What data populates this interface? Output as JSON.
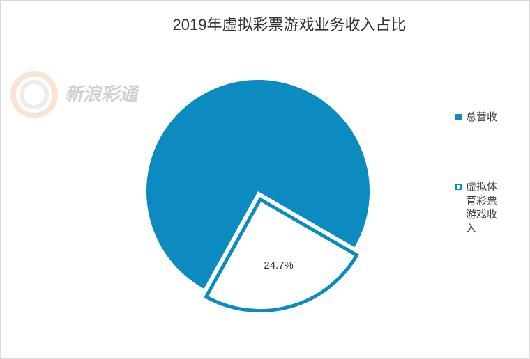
{
  "chart_data": {
    "type": "pie",
    "title": "2019年虚拟彩票游戏业务收入占比",
    "watermark": "新浪彩通",
    "categories": [
      "总营收",
      "虚拟体育彩票游戏收入"
    ],
    "values": [
      75.3,
      24.7
    ],
    "value_labels": [
      null,
      "24.7%"
    ],
    "color": "#0b8bbf"
  }
}
